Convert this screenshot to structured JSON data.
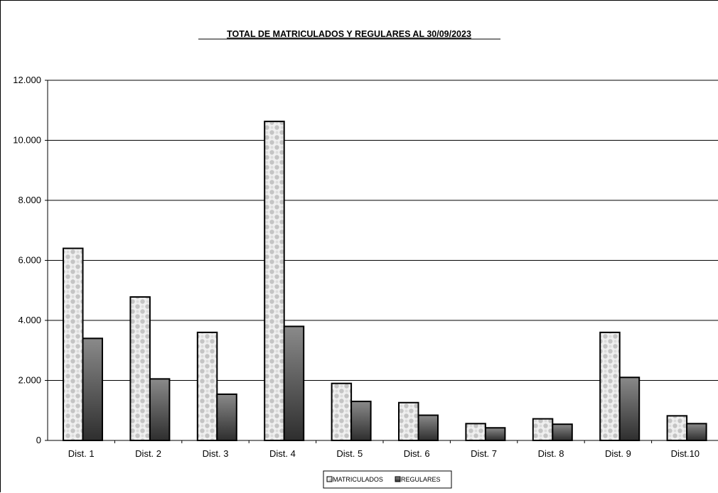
{
  "chart_data": {
    "type": "bar",
    "title": "TOTAL DE MATRICULADOS Y REGULARES AL 30/09/2023",
    "xlabel": "",
    "ylabel": "",
    "categories": [
      "Dist. 1",
      "Dist. 2",
      "Dist. 3",
      "Dist. 4",
      "Dist. 5",
      "Dist. 6",
      "Dist. 7",
      "Dist. 8",
      "Dist. 9",
      "Dist.10"
    ],
    "series": [
      {
        "name": "MATRICULADOS",
        "values": [
          6400,
          4780,
          3600,
          10630,
          1900,
          1260,
          560,
          720,
          3600,
          820
        ],
        "pattern": "checker",
        "color": "#c8c8c8"
      },
      {
        "name": "REGULARES",
        "values": [
          3400,
          2050,
          1540,
          3800,
          1300,
          840,
          420,
          540,
          2100,
          560
        ],
        "pattern": "gradient",
        "color": "#555555"
      }
    ],
    "ylim": [
      0,
      12000
    ],
    "yticks": [
      0,
      2000,
      4000,
      6000,
      8000,
      10000,
      12000
    ],
    "ytick_labels": [
      "0",
      "2.000",
      "4.000",
      "6.000",
      "8.000",
      "10.000",
      "12.000"
    ],
    "grid": true,
    "legend": "bottom-center"
  }
}
